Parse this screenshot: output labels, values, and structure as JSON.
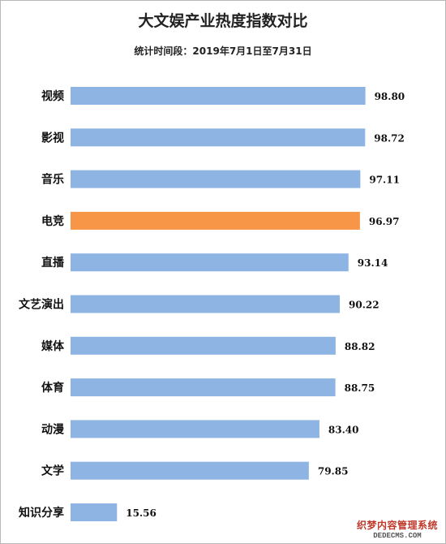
{
  "chart_data": {
    "type": "bar",
    "orientation": "horizontal",
    "title": "大文娱产业热度指数对比",
    "subtitle": "统计时间段：2019年7月1日至7月31日",
    "categories": [
      "视频",
      "影视",
      "音乐",
      "电竞",
      "直播",
      "文艺演出",
      "媒体",
      "体育",
      "动漫",
      "文学",
      "知识分享"
    ],
    "values": [
      98.8,
      98.72,
      97.11,
      96.97,
      93.14,
      90.22,
      88.82,
      88.75,
      83.4,
      79.85,
      15.56
    ],
    "value_labels": [
      "98.80",
      "98.72",
      "97.11",
      "96.97",
      "93.14",
      "90.22",
      "88.82",
      "88.75",
      "83.40",
      "79.85",
      "15.56"
    ],
    "highlight_index": 3,
    "xlim": [
      0,
      100
    ],
    "grid": false,
    "legend": "none"
  },
  "colors": {
    "bar": "#8db4e2",
    "highlight": "#f79646"
  },
  "watermark": {
    "line1": "织梦内容管理系统",
    "line2": "DEDECMS.COM"
  }
}
